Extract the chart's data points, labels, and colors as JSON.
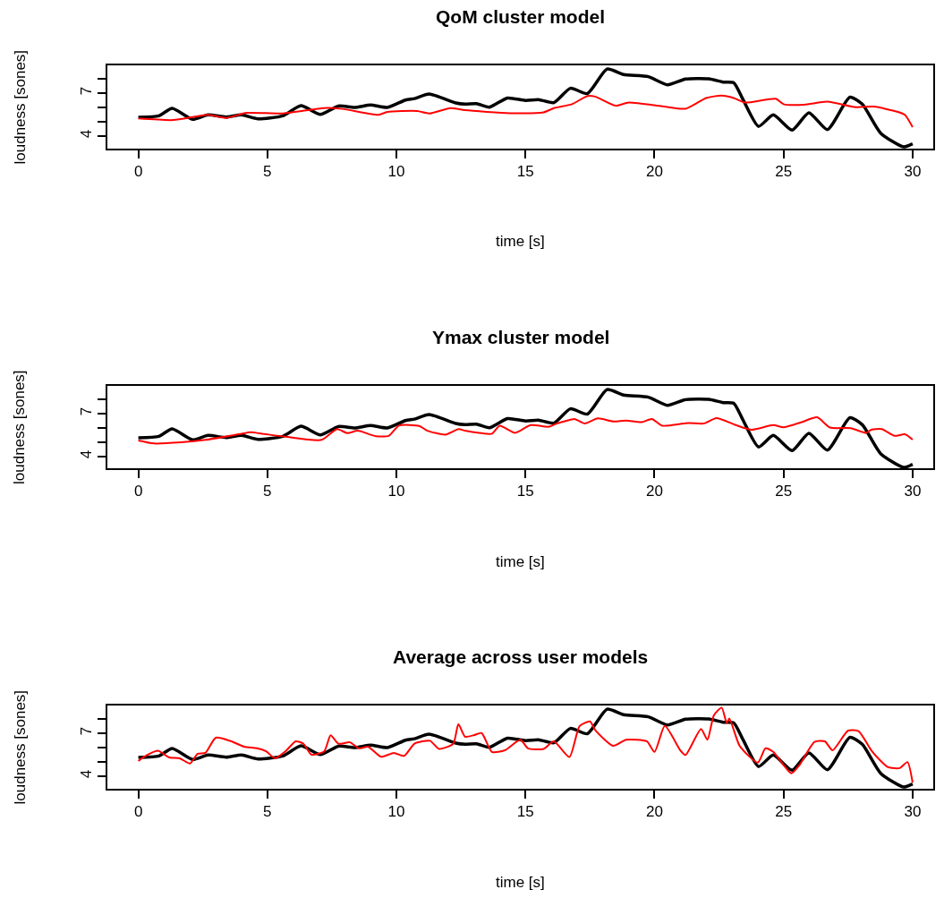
{
  "chart_data": [
    {
      "type": "line",
      "title": "QoM cluster model",
      "xlabel": "time [s]",
      "ylabel": "loudness [sones]",
      "xlim": [
        -1.2,
        30.8
      ],
      "ylim": [
        3.125,
        8.94
      ],
      "xticks": [
        0,
        5,
        10,
        15,
        20,
        25,
        30
      ],
      "yticks": [
        4,
        {
          "value": 5,
          "label": null
        },
        {
          "value": 6,
          "label": null
        },
        7,
        {
          "value": 8,
          "label": null
        }
      ],
      "line_style": "solid",
      "series": [
        {
          "color": "#000000",
          "x": [
            0,
            0.8,
            1.31,
            2.1,
            2.7,
            3.4,
            4.0,
            4.62,
            5.6,
            6.3,
            7.05,
            7.75,
            8.38,
            9.0,
            9.65,
            10.35,
            10.7,
            11.27,
            12.3,
            12.66,
            13.1,
            13.6,
            14.3,
            15.0,
            15.5,
            16.1,
            16.74,
            17.4,
            18.16,
            18.8,
            19.76,
            20.5,
            21.2,
            22.1,
            22.66,
            23.07,
            23.43,
            24.03,
            24.6,
            25.33,
            25.98,
            26.7,
            27.57,
            28.05,
            28.76,
            29.65,
            30.0
          ],
          "values": [
            5.31,
            5.42,
            5.94,
            5.17,
            5.48,
            5.33,
            5.48,
            5.21,
            5.42,
            6.12,
            5.52,
            6.1,
            6.0,
            6.17,
            6.0,
            6.52,
            6.62,
            6.94,
            6.31,
            6.23,
            6.27,
            6.02,
            6.66,
            6.49,
            6.55,
            6.34,
            7.34,
            6.97,
            8.68,
            8.3,
            8.15,
            7.58,
            7.98,
            8.0,
            7.77,
            7.72,
            6.55,
            4.68,
            5.48,
            4.42,
            5.63,
            4.46,
            6.72,
            6.23,
            4.21,
            3.25,
            3.46
          ]
        },
        {
          "color": "#ff0000",
          "x": [
            0,
            1.35,
            2.7,
            3.4,
            4.2,
            5.6,
            7.2,
            7.9,
            9.3,
            9.65,
            10.8,
            11.27,
            12.1,
            12.66,
            14.4,
            15.7,
            16.1,
            16.8,
            17.4,
            17.7,
            18.5,
            19.0,
            20.3,
            21.2,
            22.0,
            22.6,
            23.07,
            23.5,
            24.7,
            25.0,
            25.8,
            26.7,
            27.8,
            28.5,
            29.4,
            29.7,
            30.0
          ],
          "values": [
            5.23,
            5.12,
            5.48,
            5.27,
            5.62,
            5.58,
            5.96,
            5.9,
            5.48,
            5.69,
            5.75,
            5.58,
            5.96,
            5.81,
            5.6,
            5.66,
            5.95,
            6.23,
            6.8,
            6.76,
            6.12,
            6.34,
            6.08,
            5.91,
            6.66,
            6.83,
            6.66,
            6.34,
            6.61,
            6.23,
            6.19,
            6.4,
            6.02,
            6.06,
            5.7,
            5.48,
            4.63
          ]
        }
      ]
    },
    {
      "type": "line",
      "title": "Ymax cluster model",
      "xlabel": "time [s]",
      "ylabel": "loudness [sones]",
      "xlim": [
        -1.2,
        30.8
      ],
      "ylim": [
        3.19,
        8.94
      ],
      "xticks": [
        0,
        5,
        10,
        15,
        20,
        25,
        30
      ],
      "yticks": [
        4,
        {
          "value": 5,
          "label": null
        },
        {
          "value": 6,
          "label": null
        },
        7,
        {
          "value": 8,
          "label": null
        }
      ],
      "line_style": "solid",
      "series": [
        {
          "color": "#000000",
          "x": [
            0,
            0.8,
            1.31,
            2.1,
            2.7,
            3.4,
            4.0,
            4.62,
            5.6,
            6.3,
            7.05,
            7.75,
            8.38,
            9.0,
            9.65,
            10.35,
            10.7,
            11.27,
            12.3,
            12.66,
            13.1,
            13.6,
            14.3,
            15.0,
            15.5,
            16.1,
            16.74,
            17.4,
            18.16,
            18.8,
            19.76,
            20.5,
            21.2,
            22.1,
            22.66,
            23.07,
            23.43,
            24.03,
            24.6,
            25.33,
            25.98,
            26.7,
            27.57,
            28.05,
            28.76,
            29.65,
            30.0
          ],
          "values": [
            5.31,
            5.42,
            5.94,
            5.17,
            5.48,
            5.33,
            5.48,
            5.21,
            5.42,
            6.12,
            5.52,
            6.1,
            6.0,
            6.17,
            6.0,
            6.52,
            6.62,
            6.94,
            6.31,
            6.23,
            6.27,
            6.02,
            6.66,
            6.49,
            6.55,
            6.34,
            7.34,
            6.97,
            8.68,
            8.3,
            8.15,
            7.58,
            7.98,
            8.0,
            7.77,
            7.72,
            6.55,
            4.68,
            5.48,
            4.42,
            5.63,
            4.46,
            6.72,
            6.23,
            4.21,
            3.25,
            3.46
          ]
        },
        {
          "color": "#ff0000",
          "x": [
            0,
            0.6,
            1.65,
            2.6,
            4.0,
            4.35,
            4.8,
            5.7,
            7.1,
            7.7,
            8.1,
            8.5,
            9.2,
            9.7,
            10.1,
            10.9,
            11.2,
            11.9,
            12.4,
            12.66,
            13.2,
            13.7,
            14.0,
            14.6,
            15.2,
            15.9,
            16.2,
            16.5,
            16.9,
            17.3,
            17.8,
            18.4,
            18.9,
            19.5,
            19.9,
            20.3,
            21.3,
            21.9,
            22.4,
            23.1,
            23.75,
            24.6,
            25.0,
            25.7,
            26.3,
            26.8,
            27.6,
            28.2,
            28.4,
            28.8,
            29.3,
            29.7,
            30.0
          ],
          "values": [
            5.13,
            4.92,
            5.0,
            5.17,
            5.6,
            5.7,
            5.6,
            5.39,
            5.17,
            5.92,
            5.64,
            5.81,
            5.43,
            5.45,
            6.17,
            6.13,
            5.81,
            5.54,
            5.92,
            5.81,
            5.66,
            5.6,
            6.16,
            5.66,
            6.2,
            6.09,
            6.31,
            6.46,
            6.63,
            6.31,
            6.67,
            6.46,
            6.52,
            6.41,
            6.63,
            6.16,
            6.35,
            6.31,
            6.69,
            6.24,
            5.88,
            6.2,
            6.05,
            6.41,
            6.75,
            6.03,
            5.99,
            5.66,
            5.88,
            5.92,
            5.45,
            5.56,
            5.19
          ]
        }
      ]
    },
    {
      "type": "line",
      "title": "Average across user models",
      "xlabel": "time [s]",
      "ylabel": "loudness [sones]",
      "xlim": [
        -1.2,
        30.8
      ],
      "ylim": [
        3.125,
        8.94
      ],
      "xticks": [
        0,
        5,
        10,
        15,
        20,
        25,
        30
      ],
      "yticks": [
        4,
        {
          "value": 5,
          "label": null
        },
        {
          "value": 6,
          "label": null
        },
        7,
        {
          "value": 8,
          "label": null
        }
      ],
      "line_style": "solid",
      "series": [
        {
          "color": "#000000",
          "x": [
            0,
            0.8,
            1.31,
            2.1,
            2.7,
            3.4,
            4.0,
            4.62,
            5.6,
            6.3,
            7.05,
            7.75,
            8.38,
            9.0,
            9.65,
            10.35,
            10.7,
            11.27,
            12.3,
            12.66,
            13.1,
            13.6,
            14.3,
            15.0,
            15.5,
            16.1,
            16.74,
            17.4,
            18.16,
            18.8,
            19.76,
            20.5,
            21.2,
            22.1,
            22.66,
            23.07,
            23.43,
            24.03,
            24.6,
            25.33,
            25.98,
            26.7,
            27.57,
            28.05,
            28.76,
            29.65,
            30.0
          ],
          "values": [
            5.31,
            5.42,
            5.94,
            5.17,
            5.48,
            5.33,
            5.48,
            5.21,
            5.42,
            6.12,
            5.52,
            6.1,
            6.0,
            6.17,
            6.0,
            6.52,
            6.62,
            6.94,
            6.31,
            6.23,
            6.27,
            6.02,
            6.66,
            6.49,
            6.55,
            6.34,
            7.34,
            6.97,
            8.68,
            8.3,
            8.15,
            7.58,
            7.98,
            8.0,
            7.77,
            7.72,
            6.55,
            4.68,
            5.48,
            4.42,
            5.63,
            4.46,
            6.72,
            6.23,
            4.21,
            3.25,
            3.46
          ]
        },
        {
          "color": "#ff0000",
          "x": [
            0,
            0.15,
            0.75,
            1.2,
            1.6,
            2.0,
            2.3,
            2.6,
            3.0,
            3.6,
            4.1,
            4.6,
            4.95,
            5.3,
            5.7,
            6.1,
            6.4,
            6.7,
            7.2,
            7.45,
            7.75,
            8.2,
            8.55,
            8.9,
            9.4,
            9.9,
            10.3,
            10.7,
            11.3,
            11.65,
            12.2,
            12.4,
            12.66,
            13.0,
            13.3,
            13.7,
            14.2,
            14.8,
            15.1,
            15.7,
            16.1,
            16.7,
            17.1,
            17.5,
            17.7,
            18.4,
            18.9,
            19.7,
            20.0,
            20.4,
            21.0,
            21.2,
            21.8,
            22.05,
            22.3,
            22.6,
            22.8,
            22.9,
            23.3,
            24.0,
            24.3,
            24.6,
            25.3,
            25.6,
            26.2,
            26.6,
            26.9,
            27.5,
            27.9,
            28.4,
            28.6,
            29.05,
            29.5,
            29.8,
            30.0
          ],
          "values": [
            5.06,
            5.28,
            5.78,
            5.31,
            5.25,
            4.89,
            5.57,
            5.63,
            6.69,
            6.44,
            6.06,
            5.95,
            5.74,
            5.25,
            5.74,
            6.44,
            6.27,
            5.52,
            5.74,
            6.86,
            6.27,
            6.37,
            5.95,
            6.06,
            5.36,
            5.63,
            5.42,
            6.27,
            6.48,
            5.91,
            6.27,
            7.64,
            6.76,
            6.87,
            7.02,
            5.7,
            5.81,
            6.55,
            5.95,
            5.91,
            6.44,
            5.34,
            7.51,
            7.83,
            7.23,
            6.12,
            6.55,
            6.44,
            5.7,
            7.51,
            5.81,
            5.48,
            7.3,
            6.55,
            8.26,
            8.79,
            7.72,
            8.04,
            6.12,
            4.95,
            5.95,
            5.7,
            4.21,
            4.74,
            6.4,
            6.44,
            5.81,
            7.19,
            7.15,
            5.81,
            5.38,
            4.63,
            4.57,
            4.99,
            3.56
          ]
        }
      ]
    }
  ]
}
